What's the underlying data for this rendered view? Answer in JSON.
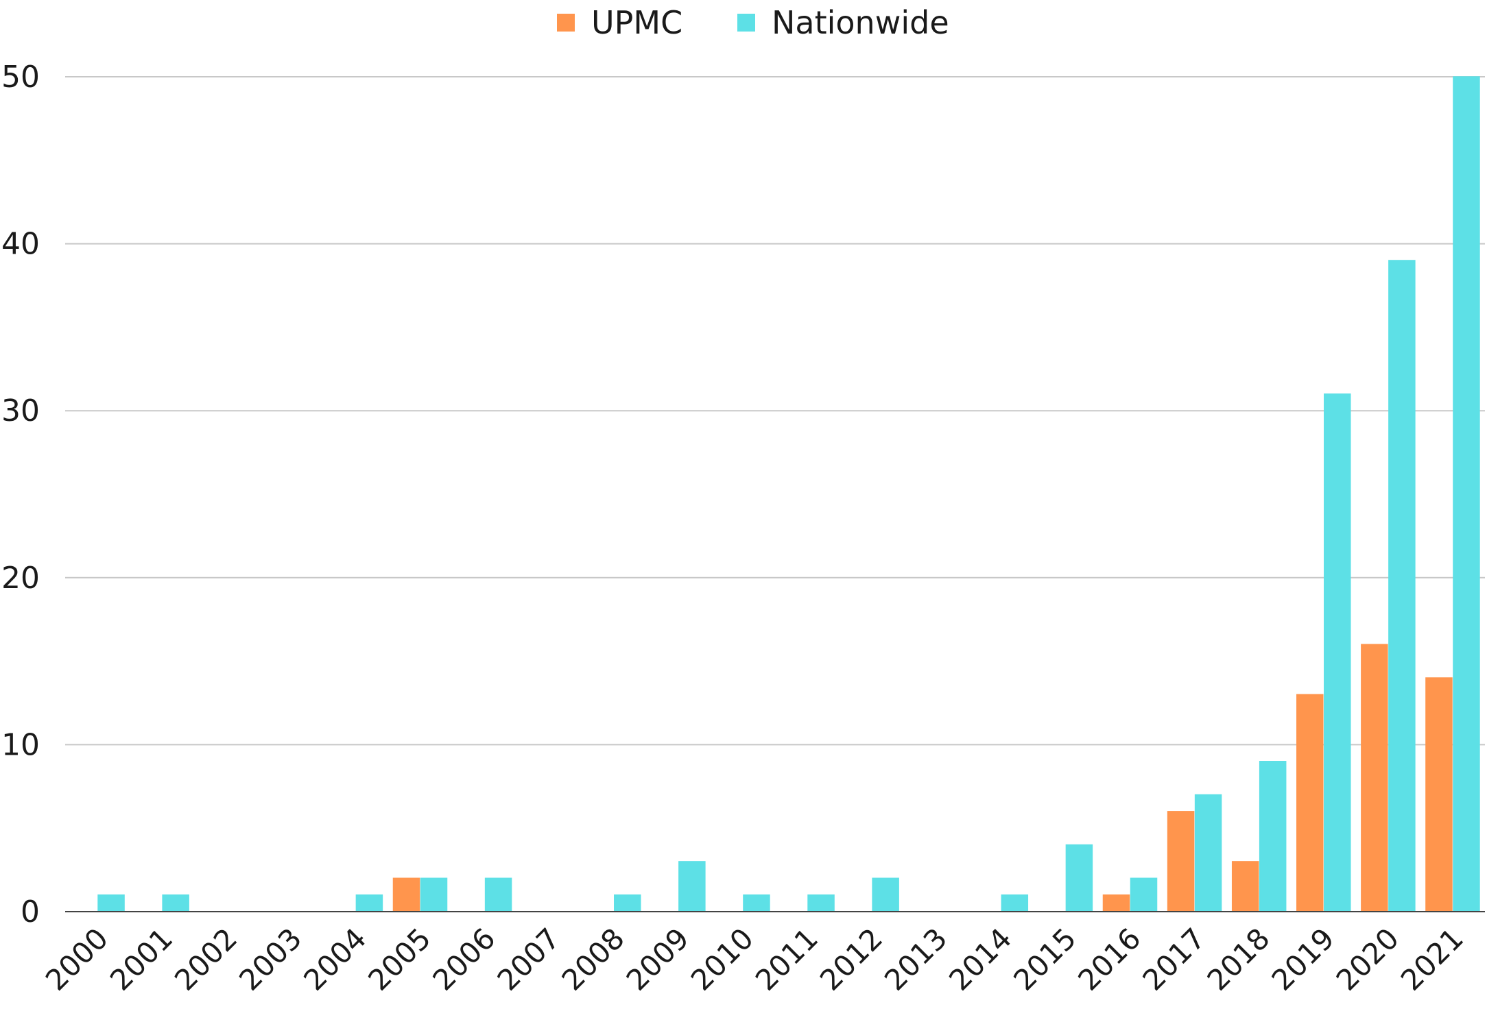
{
  "chart_data": {
    "type": "bar",
    "categories": [
      "2000",
      "2001",
      "2002",
      "2003",
      "2004",
      "2005",
      "2006",
      "2007",
      "2008",
      "2009",
      "2010",
      "2011",
      "2012",
      "2013",
      "2014",
      "2015",
      "2016",
      "2017",
      "2018",
      "2019",
      "2020",
      "2021"
    ],
    "series": [
      {
        "name": "UPMC",
        "color": "#FF954D",
        "values": [
          0,
          0,
          0,
          0,
          0,
          2,
          0,
          0,
          0,
          0,
          0,
          0,
          0,
          0,
          0,
          0,
          1,
          6,
          3,
          13,
          16,
          14
        ]
      },
      {
        "name": "Nationwide",
        "color": "#5DE0E6",
        "values": [
          1,
          1,
          0,
          0,
          1,
          2,
          2,
          0,
          1,
          3,
          1,
          1,
          2,
          0,
          1,
          4,
          2,
          7,
          9,
          31,
          39,
          50
        ]
      }
    ],
    "yticks": [
      "0",
      "10",
      "20",
      "30",
      "40",
      "50"
    ],
    "ylim": [
      0,
      50
    ],
    "grid": true,
    "legend_position": "top-center",
    "title": "",
    "xlabel": "",
    "ylabel": ""
  }
}
